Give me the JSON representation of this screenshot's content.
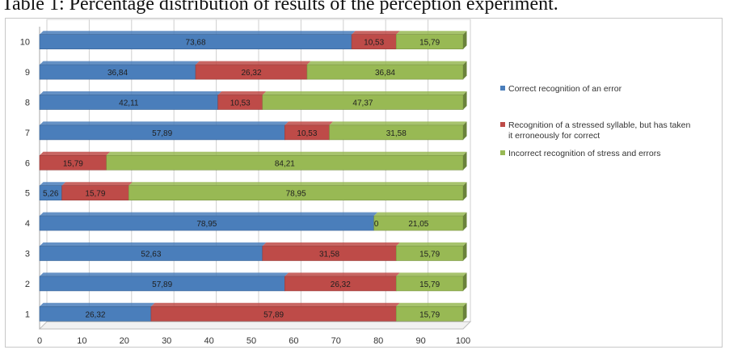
{
  "caption": "Table 1: Percentage distribution of results of the perception experiment.",
  "chart_data": {
    "type": "bar",
    "orientation": "horizontal",
    "stacked": true,
    "percent_stacked": true,
    "categories": [
      "1",
      "2",
      "3",
      "4",
      "5",
      "6",
      "7",
      "8",
      "9",
      "10"
    ],
    "series": [
      {
        "name": "Correct recognition of an error",
        "color": "#4a7ebb",
        "values": [
          26.32,
          57.89,
          52.63,
          78.95,
          5.26,
          0,
          57.89,
          42.11,
          36.84,
          73.68
        ],
        "labels": [
          "26,32",
          "57,89",
          "52,63",
          "78,95",
          "5,26",
          "",
          "57,89",
          "42,11",
          "36,84",
          "73,68"
        ]
      },
      {
        "name": "Recognition of a stressed syllable, but has taken it erroneously for correct",
        "color": "#be4b48",
        "values": [
          57.89,
          26.32,
          31.58,
          0,
          15.79,
          15.79,
          10.53,
          10.53,
          26.32,
          10.53
        ],
        "labels": [
          "57,89",
          "26,32",
          "31,58",
          "0",
          "15,79",
          "15,79",
          "10,53",
          "10,53",
          "26,32",
          "10,53"
        ]
      },
      {
        "name": "Incorrect recognition of stress and errors",
        "color": "#98b954",
        "values": [
          15.79,
          15.79,
          15.79,
          21.05,
          78.95,
          84.21,
          31.58,
          47.37,
          36.84,
          15.79
        ],
        "labels": [
          "15,79",
          "15,79",
          "15,79",
          "21,05",
          "78,95",
          "84,21",
          "31,58",
          "47,37",
          "36,84",
          "15,79"
        ]
      }
    ],
    "x_ticks": [
      "0",
      "10",
      "20",
      "30",
      "40",
      "50",
      "60",
      "70",
      "80",
      "90",
      "100"
    ],
    "xlim": [
      0,
      100
    ],
    "grid": true,
    "legend_position": "right"
  }
}
